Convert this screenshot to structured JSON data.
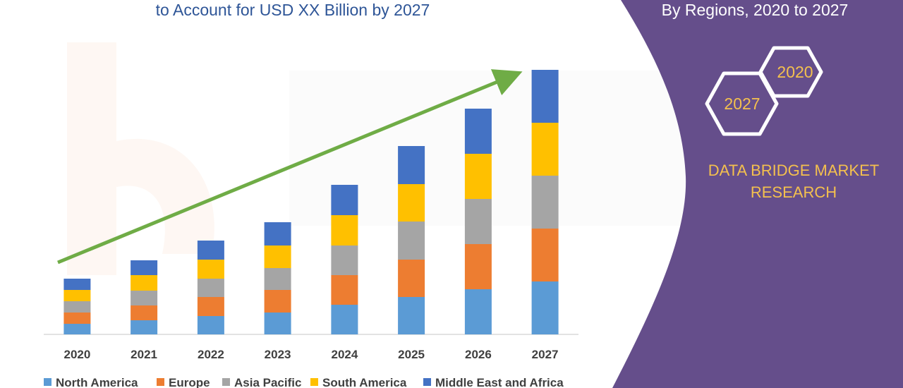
{
  "header": {
    "title": "to Account for USD XX Billion by 2027",
    "panel_subtitle": "By Regions, 2020 to 2027"
  },
  "badges": {
    "start_year": "2020",
    "end_year": "2027"
  },
  "brand": {
    "name": "DATA BRIDGE MARKET RESEARCH"
  },
  "colors": {
    "panel": "#654e8b",
    "title": "#2e5597",
    "trend_arrow": "#6fac46",
    "brand_text": "#f4c04e"
  },
  "chart_data": {
    "type": "bar",
    "stacked": true,
    "categories": [
      "2020",
      "2021",
      "2022",
      "2023",
      "2024",
      "2025",
      "2026",
      "2027"
    ],
    "series": [
      {
        "name": "North America",
        "color": "#5b9bd5",
        "values": [
          15,
          20,
          26,
          31,
          42,
          53,
          64,
          75
        ]
      },
      {
        "name": "Europe",
        "color": "#ed7d31",
        "values": [
          16,
          21,
          27,
          32,
          42,
          53,
          64,
          75
        ]
      },
      {
        "name": "Asia Pacific",
        "color": "#a5a5a5",
        "values": [
          16,
          21,
          26,
          31,
          42,
          54,
          64,
          75
        ]
      },
      {
        "name": "South America",
        "color": "#ffc000",
        "values": [
          16,
          22,
          27,
          32,
          43,
          53,
          64,
          75
        ]
      },
      {
        "name": "Middle East and Africa",
        "color": "#4472c4",
        "values": [
          16,
          21,
          27,
          33,
          43,
          54,
          64,
          75
        ]
      }
    ],
    "ylim": [
      0,
      375
    ],
    "grid": false,
    "y_axis_visible": false,
    "trend_arrow": true,
    "legend_position": "bottom"
  }
}
